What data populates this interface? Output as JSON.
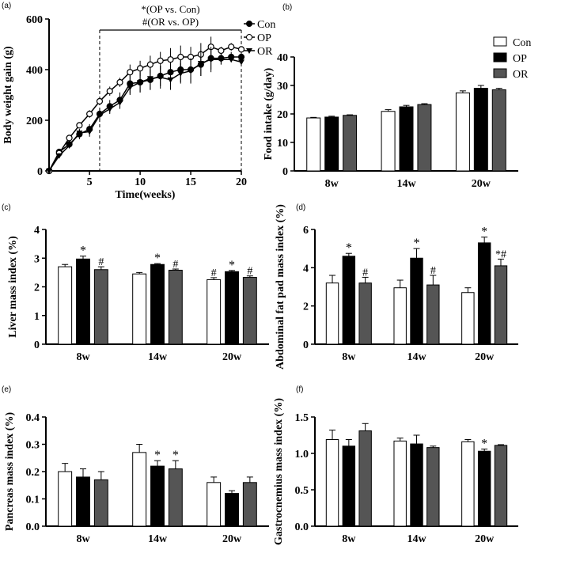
{
  "colors": {
    "Con": "#ffffff",
    "OP": "#000000",
    "OR": "#555555"
  },
  "chart_data": [
    {
      "id": "a",
      "panel_label": "(a)",
      "type": "line",
      "xlabel": "Time(weeks)",
      "ylabel": "Body weight gain (g)",
      "xlim": [
        1,
        20
      ],
      "ylim": [
        0,
        600
      ],
      "xticks": [
        5,
        10,
        15,
        20
      ],
      "yticks": [
        0,
        200,
        400,
        600
      ],
      "annotation": [
        "*(OP vs. Con)",
        "#(OR vs. OP)"
      ],
      "bracket_weeks": [
        6,
        20
      ],
      "x": [
        1,
        2,
        3,
        4,
        5,
        6,
        7,
        8,
        9,
        10,
        11,
        12,
        13,
        14,
        15,
        16,
        17,
        18,
        19,
        20
      ],
      "series": [
        {
          "name": "Con",
          "marker": "filled-circle",
          "values": [
            0,
            75,
            105,
            145,
            165,
            225,
            255,
            280,
            345,
            350,
            360,
            375,
            390,
            400,
            400,
            420,
            445,
            445,
            450,
            450
          ],
          "err": [
            0,
            8,
            12,
            20,
            20,
            20,
            25,
            30,
            40,
            40,
            40,
            40,
            45,
            50,
            50,
            45,
            45,
            25,
            20,
            15
          ]
        },
        {
          "name": "OP",
          "marker": "open-circle",
          "values": [
            0,
            70,
            130,
            180,
            225,
            275,
            315,
            350,
            390,
            405,
            420,
            435,
            440,
            450,
            450,
            460,
            490,
            475,
            490,
            480
          ],
          "err": [
            0,
            8,
            12,
            12,
            15,
            15,
            18,
            18,
            30,
            30,
            35,
            35,
            45,
            45,
            40,
            45,
            40,
            15,
            15,
            12
          ]
        },
        {
          "name": "OR",
          "marker": "triangle-down",
          "values": [
            0,
            60,
            100,
            150,
            155,
            220,
            245,
            270,
            330,
            350,
            365,
            370,
            360,
            385,
            395,
            425,
            440,
            440,
            440,
            430
          ],
          "err": [
            0,
            8,
            10,
            15,
            20,
            20,
            20,
            25,
            30,
            40,
            45,
            45,
            40,
            40,
            50,
            50,
            50,
            20,
            10,
            10
          ]
        }
      ]
    },
    {
      "id": "b",
      "panel_label": "(b)",
      "type": "bar",
      "ylabel": "Food intake (g/day)",
      "categories": [
        "8w",
        "14w",
        "20w"
      ],
      "ylim": [
        0,
        40
      ],
      "yticks": [
        0,
        10,
        20,
        30,
        40
      ],
      "legend": [
        "Con",
        "OP",
        "OR"
      ],
      "series": [
        {
          "name": "Con",
          "values": [
            18.6,
            20.9,
            27.4
          ],
          "err": [
            0.2,
            0.6,
            0.7
          ]
        },
        {
          "name": "OP",
          "values": [
            18.9,
            22.5,
            29
          ],
          "err": [
            0.3,
            0.5,
            1
          ]
        },
        {
          "name": "OR",
          "values": [
            19.5,
            23.3,
            28.5
          ],
          "err": [
            0.2,
            0.3,
            0.5
          ]
        }
      ],
      "marks": []
    },
    {
      "id": "c",
      "panel_label": "(c)",
      "type": "bar",
      "ylabel": "Liver mass index (%)",
      "categories": [
        "8w",
        "14w",
        "20w"
      ],
      "ylim": [
        0,
        4
      ],
      "yticks": [
        0,
        1,
        2,
        3,
        4
      ],
      "series": [
        {
          "name": "Con",
          "values": [
            2.7,
            2.45,
            2.25
          ],
          "err": [
            0.08,
            0.05,
            0.07
          ]
        },
        {
          "name": "OP",
          "values": [
            2.97,
            2.78,
            2.53
          ],
          "err": [
            0.1,
            0.03,
            0.04
          ]
        },
        {
          "name": "OR",
          "values": [
            2.6,
            2.58,
            2.33
          ],
          "err": [
            0.1,
            0.04,
            0.05
          ]
        }
      ],
      "marks": [
        [
          "",
          "",
          "#"
        ],
        [
          "*",
          "*",
          "*"
        ],
        [
          "#",
          "#",
          "#"
        ]
      ]
    },
    {
      "id": "d",
      "panel_label": "(d)",
      "type": "bar",
      "ylabel": "Abdominal fat pad mass index (%)",
      "categories": [
        "8w",
        "14w",
        "20w"
      ],
      "ylim": [
        0,
        6
      ],
      "yticks": [
        0,
        2,
        4,
        6
      ],
      "series": [
        {
          "name": "Con",
          "values": [
            3.2,
            2.95,
            2.7
          ],
          "err": [
            0.4,
            0.4,
            0.25
          ]
        },
        {
          "name": "OP",
          "values": [
            4.6,
            4.5,
            5.3
          ],
          "err": [
            0.15,
            0.5,
            0.3
          ]
        },
        {
          "name": "OR",
          "values": [
            3.2,
            3.1,
            4.1
          ],
          "err": [
            0.3,
            0.5,
            0.35
          ]
        }
      ],
      "marks": [
        [
          "",
          "",
          ""
        ],
        [
          "*",
          "*",
          "*"
        ],
        [
          "#",
          "#",
          "*#"
        ]
      ]
    },
    {
      "id": "e",
      "panel_label": "(e)",
      "type": "bar",
      "ylabel": "Pancreas mass index (%)",
      "categories": [
        "8w",
        "14w",
        "20w"
      ],
      "ylim": [
        0,
        0.4
      ],
      "yticks": [
        "0.0",
        "0.1",
        "0.2",
        "0.3",
        "0.4"
      ],
      "series": [
        {
          "name": "Con",
          "values": [
            0.2,
            0.27,
            0.16
          ],
          "err": [
            0.03,
            0.03,
            0.02
          ]
        },
        {
          "name": "OP",
          "values": [
            0.18,
            0.22,
            0.12
          ],
          "err": [
            0.03,
            0.02,
            0.01
          ]
        },
        {
          "name": "OR",
          "values": [
            0.17,
            0.21,
            0.16
          ],
          "err": [
            0.03,
            0.03,
            0.02
          ]
        }
      ],
      "marks": [
        [
          "",
          "",
          ""
        ],
        [
          "",
          "*",
          ""
        ],
        [
          "",
          "*",
          ""
        ]
      ]
    },
    {
      "id": "f",
      "panel_label": "(f)",
      "type": "bar",
      "ylabel": "Gastrocnemius mass index (%)",
      "categories": [
        "8w",
        "14w",
        "20w"
      ],
      "ylim": [
        0,
        1.5
      ],
      "yticks": [
        "0.0",
        "0.5",
        "1.0",
        "1.5"
      ],
      "series": [
        {
          "name": "Con",
          "values": [
            1.19,
            1.17,
            1.16
          ],
          "err": [
            0.13,
            0.04,
            0.03
          ]
        },
        {
          "name": "OP",
          "values": [
            1.1,
            1.13,
            1.03
          ],
          "err": [
            0.09,
            0.12,
            0.03
          ]
        },
        {
          "name": "OR",
          "values": [
            1.31,
            1.08,
            1.11
          ],
          "err": [
            0.1,
            0.02,
            0.01
          ]
        }
      ],
      "marks": [
        [
          "",
          "",
          ""
        ],
        [
          "",
          "",
          "*"
        ],
        [
          "",
          "",
          ""
        ]
      ]
    }
  ]
}
